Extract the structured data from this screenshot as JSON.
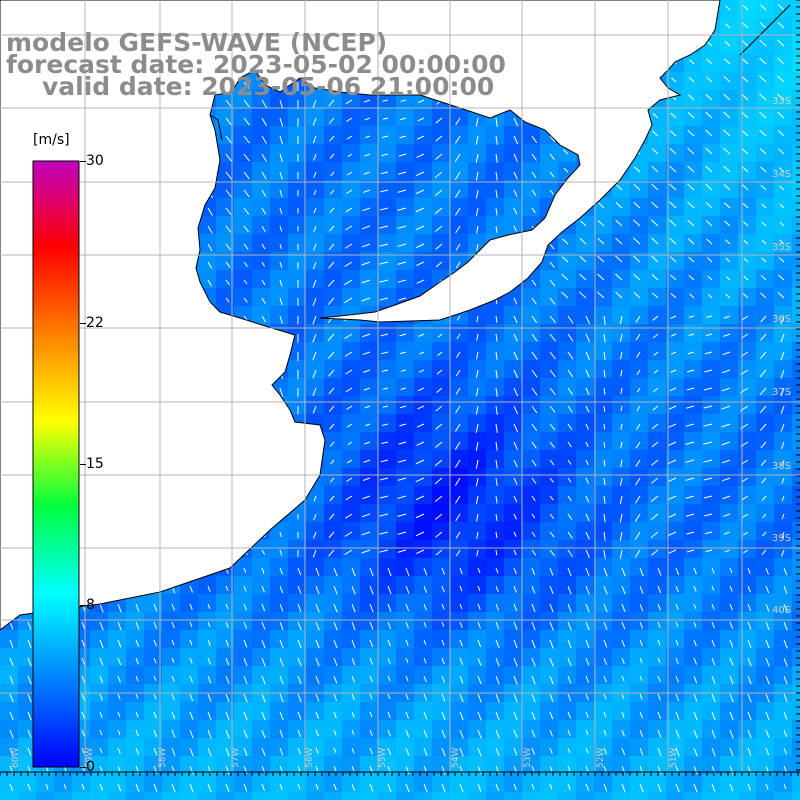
{
  "title": {
    "line1": "modelo GEFS-WAVE (NCEP)",
    "line2": "forecast date: 2023-05-02 00:00:00",
    "line3": "valid date: 2023-05-06 21:00:00"
  },
  "colorbar": {
    "units": "[m/s]",
    "ticks": [
      "30",
      "22",
      "15",
      "8",
      "0"
    ],
    "tick_values": [
      30,
      22,
      15,
      8,
      0
    ],
    "range": [
      0,
      30
    ],
    "colors": [
      "#0000ff",
      "#0080ff",
      "#00ffff",
      "#00ff40",
      "#ffff00",
      "#ff8000",
      "#ff0000",
      "#c000c0"
    ]
  },
  "map": {
    "lat_labels": [
      "33S",
      "34S",
      "35S",
      "36S",
      "37S",
      "38S",
      "39S",
      "40S"
    ],
    "lon_labels": [
      "60W",
      "59W",
      "58W",
      "57W",
      "56W",
      "55W",
      "54W",
      "53W",
      "52W",
      "51W"
    ],
    "land_color": "#ffffff",
    "coast_color": "#000000",
    "grid_color": "#b4b4b4"
  }
}
